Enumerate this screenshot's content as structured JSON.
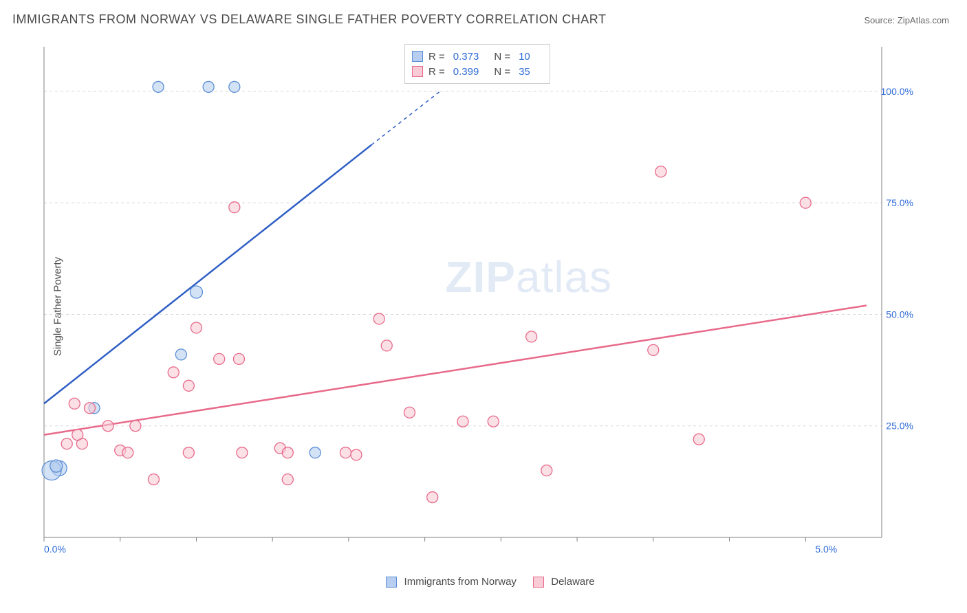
{
  "title": "IMMIGRANTS FROM NORWAY VS DELAWARE SINGLE FATHER POVERTY CORRELATION CHART",
  "source": "Source: ZipAtlas.com",
  "ylabel": "Single Father Poverty",
  "watermark_a": "ZIP",
  "watermark_b": "atlas",
  "chart": {
    "type": "scatter",
    "xlim": [
      0,
      5.5
    ],
    "ylim": [
      0,
      110
    ],
    "x_ticks": [
      0.0,
      0.5,
      1.0,
      1.5,
      2.0,
      2.5,
      3.0,
      3.5,
      4.0,
      4.5,
      5.0
    ],
    "x_tick_labels": [
      "0.0%",
      "",
      "",
      "",
      "",
      "",
      "",
      "",
      "",
      "",
      "5.0%"
    ],
    "y_ticks": [
      25,
      50,
      75,
      100
    ],
    "y_tick_labels": [
      "25.0%",
      "50.0%",
      "75.0%",
      "100.0%"
    ],
    "grid_color": "#d9d9d9",
    "axis_color": "#808080",
    "background_color": "#ffffff",
    "axis_label_color": "#2f6bd6",
    "series": [
      {
        "name": "Immigrants from Norway",
        "fill": "#b7cef0",
        "stroke": "#5b8fd6",
        "line_color": "#2f5fc4",
        "r_value": "0.373",
        "n_value": "10",
        "points": [
          {
            "x": 0.75,
            "y": 101,
            "r": 8
          },
          {
            "x": 1.08,
            "y": 101,
            "r": 8
          },
          {
            "x": 1.25,
            "y": 101,
            "r": 8
          },
          {
            "x": 1.0,
            "y": 55,
            "r": 9
          },
          {
            "x": 0.9,
            "y": 41,
            "r": 8
          },
          {
            "x": 0.33,
            "y": 29,
            "r": 8
          },
          {
            "x": 1.78,
            "y": 19,
            "r": 8
          },
          {
            "x": 0.1,
            "y": 15.5,
            "r": 11
          },
          {
            "x": 0.05,
            "y": 15,
            "r": 14
          },
          {
            "x": 0.08,
            "y": 16,
            "r": 9
          }
        ],
        "trend": {
          "x1": 0.0,
          "y1": 30,
          "x2": 2.15,
          "y2": 88,
          "dash_x2": 2.6,
          "dash_y2": 100
        }
      },
      {
        "name": "Delaware",
        "fill": "#f8cbd6",
        "stroke": "#e86a8a",
        "line_color": "#e86a8a",
        "r_value": "0.399",
        "n_value": "35",
        "points": [
          {
            "x": 4.05,
            "y": 82,
            "r": 8
          },
          {
            "x": 5.0,
            "y": 75,
            "r": 8
          },
          {
            "x": 1.25,
            "y": 74,
            "r": 8
          },
          {
            "x": 2.2,
            "y": 49,
            "r": 8
          },
          {
            "x": 1.0,
            "y": 47,
            "r": 8
          },
          {
            "x": 3.2,
            "y": 45,
            "r": 8
          },
          {
            "x": 2.25,
            "y": 43,
            "r": 8
          },
          {
            "x": 4.0,
            "y": 42,
            "r": 8
          },
          {
            "x": 1.15,
            "y": 40,
            "r": 8
          },
          {
            "x": 1.28,
            "y": 40,
            "r": 8
          },
          {
            "x": 0.85,
            "y": 37,
            "r": 8
          },
          {
            "x": 0.95,
            "y": 34,
            "r": 8
          },
          {
            "x": 0.2,
            "y": 30,
            "r": 8
          },
          {
            "x": 0.3,
            "y": 29,
            "r": 8
          },
          {
            "x": 2.4,
            "y": 28,
            "r": 8
          },
          {
            "x": 2.75,
            "y": 26,
            "r": 8
          },
          {
            "x": 2.95,
            "y": 26,
            "r": 8
          },
          {
            "x": 0.42,
            "y": 25,
            "r": 8
          },
          {
            "x": 0.6,
            "y": 25,
            "r": 8
          },
          {
            "x": 4.3,
            "y": 22,
            "r": 8
          },
          {
            "x": 0.15,
            "y": 21,
            "r": 8
          },
          {
            "x": 0.25,
            "y": 21,
            "r": 8
          },
          {
            "x": 0.22,
            "y": 23,
            "r": 8
          },
          {
            "x": 0.5,
            "y": 19.5,
            "r": 8
          },
          {
            "x": 0.55,
            "y": 19,
            "r": 8
          },
          {
            "x": 0.95,
            "y": 19,
            "r": 8
          },
          {
            "x": 1.3,
            "y": 19,
            "r": 8
          },
          {
            "x": 1.55,
            "y": 20,
            "r": 8
          },
          {
            "x": 1.6,
            "y": 19,
            "r": 8
          },
          {
            "x": 1.98,
            "y": 19,
            "r": 8
          },
          {
            "x": 2.05,
            "y": 18.5,
            "r": 8
          },
          {
            "x": 3.3,
            "y": 15,
            "r": 8
          },
          {
            "x": 1.6,
            "y": 13,
            "r": 8
          },
          {
            "x": 0.72,
            "y": 13,
            "r": 8
          },
          {
            "x": 2.55,
            "y": 9,
            "r": 8
          }
        ],
        "trend": {
          "x1": 0.0,
          "y1": 23,
          "x2": 5.4,
          "y2": 52
        }
      }
    ]
  },
  "bottom_legend": {
    "a": "Immigrants from Norway",
    "b": "Delaware"
  }
}
